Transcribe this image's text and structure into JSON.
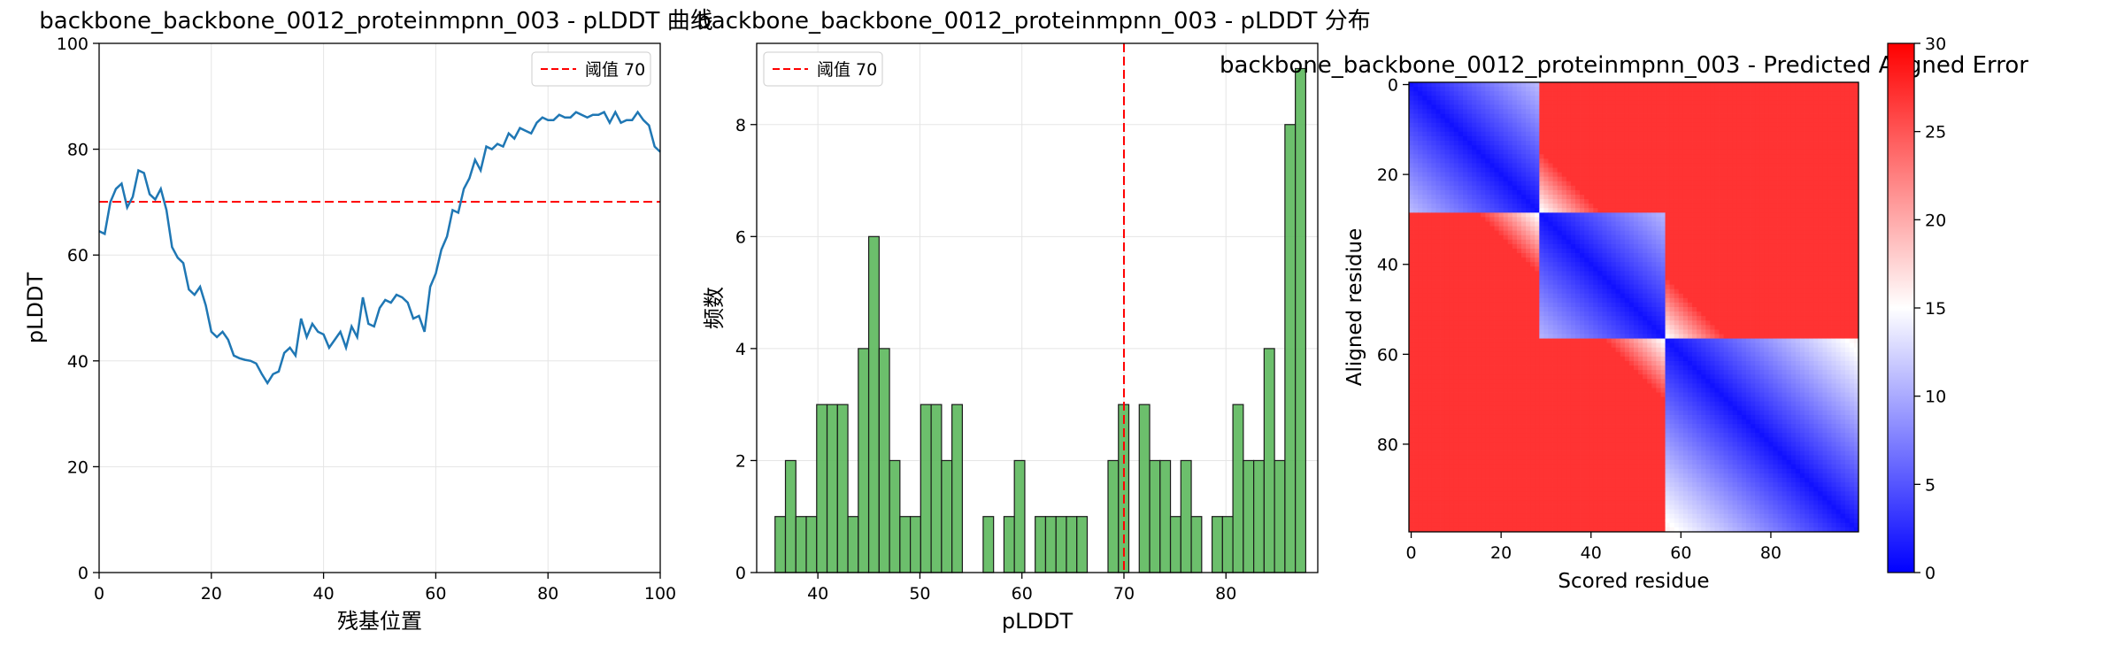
{
  "chart_data": [
    {
      "type": "line",
      "title": "backbone_backbone_0012_proteinmpnn_003 - pLDDT 曲线",
      "xlabel": "残基位置",
      "ylabel": "pLDDT",
      "xlim": [
        0,
        100
      ],
      "ylim": [
        0,
        100
      ],
      "xticks": [
        "0",
        "20",
        "40",
        "60",
        "80",
        "100"
      ],
      "yticks": [
        "0",
        "20",
        "40",
        "60",
        "80",
        "100"
      ],
      "grid": true,
      "legend_position": "top-right",
      "threshold": {
        "value": 70,
        "label": "阈值 70",
        "color": "#ff0000"
      },
      "line_color": "#1f77b4",
      "x": [
        0,
        1,
        2,
        3,
        4,
        5,
        6,
        7,
        8,
        9,
        10,
        11,
        12,
        13,
        14,
        15,
        16,
        17,
        18,
        19,
        20,
        21,
        22,
        23,
        24,
        25,
        26,
        27,
        28,
        29,
        30,
        31,
        32,
        33,
        34,
        35,
        36,
        37,
        38,
        39,
        40,
        41,
        42,
        43,
        44,
        45,
        46,
        47,
        48,
        49,
        50,
        51,
        52,
        53,
        54,
        55,
        56,
        57,
        58,
        59,
        60,
        61,
        62,
        63,
        64,
        65,
        66,
        67,
        68,
        69,
        70,
        71,
        72,
        73,
        74,
        75,
        76,
        77,
        78,
        79,
        80,
        81,
        82,
        83,
        84,
        85,
        86,
        87,
        88,
        89,
        90,
        91,
        92,
        93,
        94,
        95,
        96,
        97,
        98,
        99,
        100
      ],
      "y": [
        64.5,
        64,
        70,
        72.5,
        73.5,
        69,
        71,
        76,
        75.5,
        71.5,
        70.5,
        72.5,
        68.5,
        61.5,
        59.5,
        58.5,
        53.5,
        52.5,
        54,
        50.5,
        45.5,
        44.5,
        45.5,
        44,
        41,
        40.5,
        40.2,
        40,
        39.5,
        37.5,
        35.8,
        37.5,
        38,
        41.5,
        42.5,
        41,
        48,
        44.5,
        47,
        45.5,
        45,
        42.5,
        44,
        45.5,
        42.5,
        46.5,
        44.5,
        52,
        47,
        46.5,
        50,
        51.5,
        51,
        52.5,
        52,
        51,
        48,
        48.5,
        45.5,
        54,
        56.5,
        61,
        63.5,
        68.5,
        68,
        72.5,
        74.5,
        78,
        76,
        80.5,
        80,
        81,
        80.5,
        83,
        82,
        84,
        83.5,
        83,
        85,
        86,
        85.5,
        85.5,
        86.5,
        86,
        86,
        87,
        86.5,
        86,
        86.5,
        86.5,
        87,
        85,
        87,
        85,
        85.5,
        85.5,
        87,
        85.5,
        84.5,
        80.5,
        79.5
      ]
    },
    {
      "type": "bar",
      "title": "backbone_backbone_0012_proteinmpnn_003 - pLDDT 分布",
      "xlabel": "pLDDT",
      "ylabel": "频数",
      "xlim": [
        34,
        89
      ],
      "ylim": [
        0,
        9.45
      ],
      "xticks": [
        "40",
        "50",
        "60",
        "70",
        "80"
      ],
      "yticks": [
        "0",
        "2",
        "4",
        "6",
        "8"
      ],
      "grid": true,
      "legend_position": "top-left",
      "threshold": {
        "value": 70,
        "label": "阈值 70",
        "color": "#ff0000"
      },
      "bar_color": "#5cb85c",
      "bin_start": 35.8,
      "bin_width": 1.02,
      "values": [
        1,
        2,
        1,
        1,
        3,
        3,
        3,
        1,
        4,
        6,
        4,
        2,
        1,
        1,
        3,
        3,
        2,
        3,
        0,
        0,
        1,
        0,
        1,
        2,
        0,
        1,
        1,
        1,
        1,
        1,
        0,
        0,
        2,
        3,
        0,
        3,
        2,
        2,
        1,
        2,
        1,
        0,
        1,
        1,
        3,
        2,
        2,
        4,
        2,
        8,
        9
      ]
    },
    {
      "type": "heatmap",
      "title": "backbone_backbone_0012_proteinmpnn_003 - Predicted Aligned Error",
      "xlabel": "Scored residue",
      "ylabel": "Aligned residue",
      "n": 100,
      "xticks": [
        "0",
        "20",
        "40",
        "60",
        "80"
      ],
      "yticks": [
        "0",
        "20",
        "40",
        "60",
        "80"
      ],
      "colormap": "bwr",
      "colors": [
        "#0000ff",
        "#ffffff",
        "#ff0000"
      ],
      "vmin": 0,
      "vmax": 30,
      "colorbar_ticks": [
        "0",
        "5",
        "10",
        "15",
        "20",
        "25",
        "30"
      ],
      "domains": [
        [
          0,
          28
        ],
        [
          29,
          56
        ],
        [
          57,
          99
        ]
      ],
      "diagonal_error": 1
    }
  ]
}
